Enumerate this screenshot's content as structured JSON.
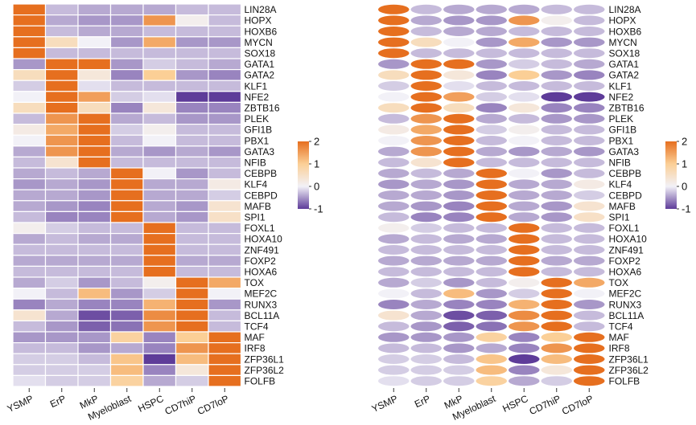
{
  "chart_data": {
    "type": "heatmap",
    "genes": [
      "LIN28A",
      "HOPX",
      "HOXB6",
      "MYCN",
      "SOX18",
      "GATA1",
      "GATA2",
      "KLF1",
      "NFE2",
      "ZBTB16",
      "PLEK",
      "GFI1B",
      "PBX1",
      "GATA3",
      "NFIB",
      "CEBPB",
      "KLF4",
      "CEBPD",
      "MAFB",
      "SPI1",
      "FOXL1",
      "HOXA10",
      "ZNF491",
      "FOXP2",
      "HOXA6",
      "TOX",
      "MEF2C",
      "RUNX3",
      "BCL11A",
      "TCF4",
      "MAF",
      "IRF8",
      "ZFP36L1",
      "ZFP36L2",
      "FOLFB"
    ],
    "cell_types": [
      "YSMP",
      "ErP",
      "MkP",
      "Myeloblast",
      "HSPC",
      "CD7hiP",
      "CD7loP"
    ],
    "values": [
      [
        2.0,
        -0.3,
        -0.4,
        -0.4,
        -0.4,
        -0.3,
        -0.3
      ],
      [
        2.0,
        -0.4,
        -0.5,
        -0.5,
        1.6,
        0.1,
        -0.3
      ],
      [
        2.0,
        -0.3,
        -0.4,
        -0.4,
        -0.3,
        -0.3,
        -0.3
      ],
      [
        2.0,
        0.6,
        0.0,
        -0.5,
        1.4,
        -0.5,
        -0.5
      ],
      [
        2.0,
        -0.3,
        -0.3,
        -0.3,
        -0.3,
        -0.3,
        -0.3
      ],
      [
        -0.5,
        2.0,
        2.0,
        -0.5,
        -0.2,
        -0.3,
        -0.4
      ],
      [
        0.6,
        2.0,
        0.3,
        -0.6,
        1.0,
        -0.5,
        -0.6
      ],
      [
        -0.2,
        2.0,
        -0.1,
        -0.3,
        -0.3,
        -0.3,
        -0.3
      ],
      [
        0.0,
        2.0,
        1.5,
        -0.2,
        -0.1,
        -1.0,
        -1.0
      ],
      [
        0.6,
        2.0,
        0.6,
        -0.6,
        0.3,
        -0.6,
        -0.6
      ],
      [
        -0.3,
        1.6,
        2.0,
        -0.4,
        -0.3,
        -0.5,
        -0.5
      ],
      [
        0.2,
        1.4,
        2.0,
        -0.2,
        0.1,
        -0.3,
        -0.3
      ],
      [
        0.0,
        1.6,
        2.0,
        -0.3,
        0.0,
        -0.3,
        -0.3
      ],
      [
        -0.4,
        1.6,
        2.0,
        -0.4,
        -0.5,
        -0.4,
        -0.5
      ],
      [
        -0.3,
        0.4,
        2.0,
        -0.3,
        -0.3,
        -0.3,
        -0.3
      ],
      [
        -0.4,
        -0.3,
        -0.4,
        2.0,
        0.0,
        -0.5,
        -0.3
      ],
      [
        -0.5,
        -0.4,
        -0.5,
        2.0,
        -0.4,
        -0.4,
        0.2
      ],
      [
        -0.4,
        -0.4,
        -0.5,
        2.0,
        -0.4,
        -0.4,
        -0.2
      ],
      [
        -0.4,
        -0.5,
        -0.6,
        2.0,
        -0.4,
        -0.5,
        0.4
      ],
      [
        -0.3,
        -0.6,
        -0.6,
        2.0,
        -0.4,
        -0.5,
        0.5
      ],
      [
        0.1,
        -0.2,
        -0.3,
        -0.3,
        2.0,
        -0.3,
        -0.3
      ],
      [
        -0.4,
        -0.3,
        -0.4,
        -0.4,
        2.0,
        -0.3,
        -0.3
      ],
      [
        -0.3,
        -0.3,
        -0.3,
        -0.3,
        2.0,
        -0.3,
        -0.3
      ],
      [
        -0.4,
        -0.4,
        -0.4,
        -0.4,
        2.0,
        -0.4,
        -0.4
      ],
      [
        -0.3,
        -0.3,
        -0.3,
        -0.3,
        2.0,
        -0.3,
        -0.3
      ],
      [
        -0.4,
        -0.2,
        -0.5,
        -0.3,
        0.1,
        2.0,
        1.4
      ],
      [
        0.0,
        -0.3,
        1.2,
        -0.5,
        -0.2,
        2.0,
        0.0
      ],
      [
        -0.6,
        -0.4,
        -0.6,
        -0.6,
        1.3,
        2.0,
        -0.5
      ],
      [
        0.4,
        -0.4,
        -0.9,
        -0.8,
        1.7,
        2.0,
        -0.3
      ],
      [
        -0.3,
        -0.5,
        -0.8,
        -0.7,
        1.6,
        2.0,
        -0.3
      ],
      [
        -0.5,
        -0.5,
        -0.5,
        0.9,
        -0.6,
        1.0,
        2.0
      ],
      [
        -0.3,
        -0.3,
        -0.5,
        -0.4,
        -0.6,
        1.6,
        2.0
      ],
      [
        -0.2,
        -0.2,
        -0.3,
        1.1,
        -1.0,
        1.2,
        2.0
      ],
      [
        -0.2,
        -0.2,
        -0.2,
        1.2,
        -0.6,
        0.3,
        2.0
      ],
      [
        -0.1,
        -0.2,
        -0.2,
        0.9,
        -0.4,
        -0.2,
        2.0
      ]
    ],
    "color_scale": {
      "min": -1,
      "max": 2,
      "stops": [
        {
          "value": -1,
          "color": "#5e3c99"
        },
        {
          "value": 0,
          "color": "#f2f1f7"
        },
        {
          "value": 1,
          "color": "#fbcf96"
        },
        {
          "value": 2,
          "color": "#e66f1f"
        }
      ],
      "ticks": [
        "2",
        "1",
        "0",
        "-1"
      ]
    },
    "panels": [
      "rectangle cells",
      "ellipse cells"
    ]
  }
}
